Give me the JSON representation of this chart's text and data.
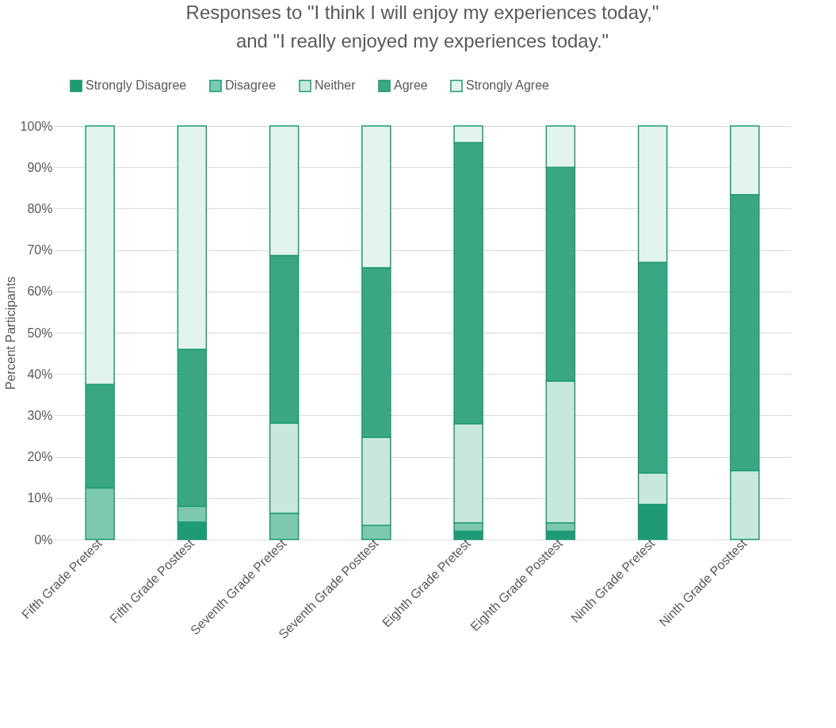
{
  "chart_data": {
    "type": "bar",
    "title": [
      "Responses to \"I think I will enjoy my experiences today,\"",
      "and \"I really enjoyed my experiences today.\""
    ],
    "ylabel": "Percent Participants",
    "categories": [
      "Fifth Grade Pretest",
      "Fifth Grade Posttest",
      "Seventh Grade Pretest",
      "Seventh Grade Posttest",
      "Eighth Grade Pretest",
      "Eighth Grade Posttest",
      "Ninth Grade Pretest",
      "Ninth Grade Posttest"
    ],
    "stacked": true,
    "series": [
      {
        "name": "Strongly Disagree",
        "color": "#1e9a74",
        "values": [
          0,
          4.2,
          0,
          0,
          2,
          2,
          8.5,
          0
        ]
      },
      {
        "name": "Disagree",
        "color": "#7ec8b0",
        "values": [
          12.5,
          3.8,
          6.3,
          3.4,
          2,
          2,
          0,
          0
        ]
      },
      {
        "name": "Neither",
        "color": "#c8e8dd",
        "values": [
          0,
          0,
          21.8,
          21.3,
          24,
          34.3,
          7.6,
          16.6
        ]
      },
      {
        "name": "Agree",
        "color": "#3aa683",
        "values": [
          25,
          38,
          40.6,
          41,
          68,
          51.7,
          50.9,
          66.8
        ]
      },
      {
        "name": "Strongly Agree",
        "color": "#e3f3ed",
        "values": [
          62.5,
          54,
          31.3,
          34.3,
          4,
          10,
          33,
          16.6
        ]
      }
    ],
    "ylim": [
      0,
      100
    ],
    "yticks": [
      {
        "value": 0,
        "label": "0%"
      },
      {
        "value": 10,
        "label": "10%"
      },
      {
        "value": 20,
        "label": "20%"
      },
      {
        "value": 30,
        "label": "30%"
      },
      {
        "value": 40,
        "label": "40%"
      },
      {
        "value": 50,
        "label": "50%"
      },
      {
        "value": 60,
        "label": "60%"
      },
      {
        "value": 70,
        "label": "70%"
      },
      {
        "value": 80,
        "label": "80%"
      },
      {
        "value": 90,
        "label": "90%"
      },
      {
        "value": 100,
        "label": "100%"
      }
    ],
    "grid": "y",
    "legend": "top"
  }
}
